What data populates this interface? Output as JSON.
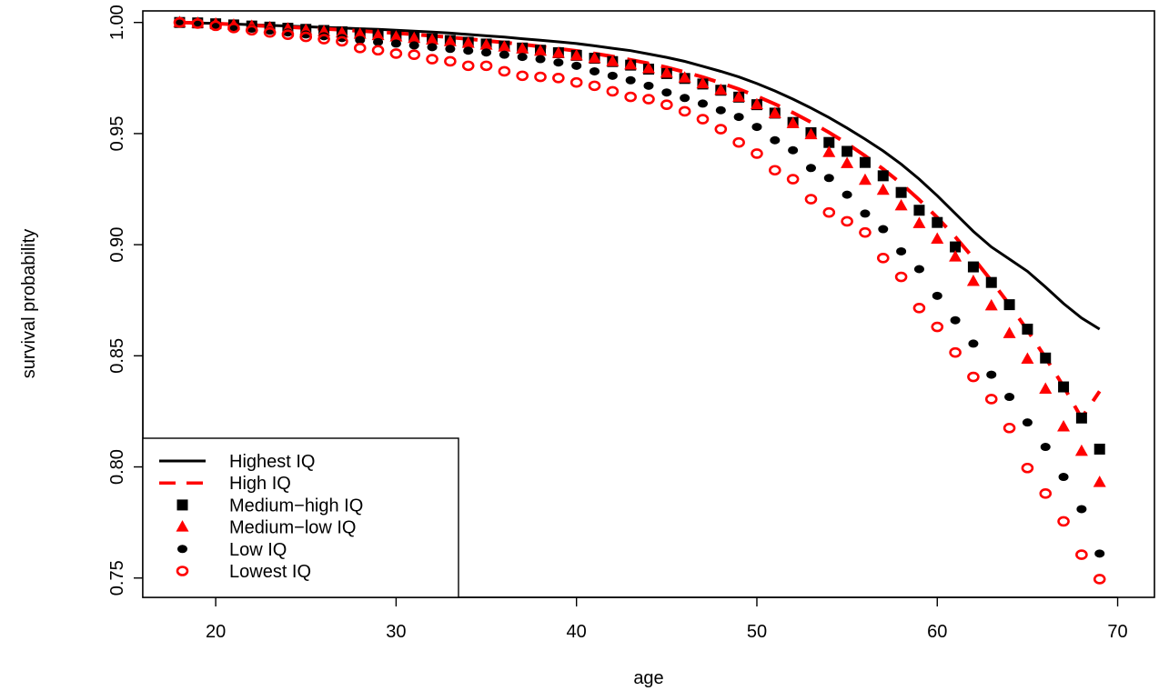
{
  "chart_data": {
    "type": "line",
    "title": "",
    "xlabel": "age",
    "ylabel": "survival probability",
    "xlim": [
      15.96,
      72.04
    ],
    "ylim": [
      0.7413,
      1.0052
    ],
    "x_ticks": [
      20,
      30,
      40,
      50,
      60,
      70
    ],
    "y_ticks": [
      0.75,
      0.8,
      0.85,
      0.9,
      0.95,
      1.0
    ],
    "x_tick_labels": [
      "20",
      "30",
      "40",
      "50",
      "60",
      "70"
    ],
    "y_tick_labels": [
      "0.75",
      "0.80",
      "0.85",
      "0.90",
      "0.95",
      "1.00"
    ],
    "grid": false,
    "legend_position": "bottom-left",
    "x": [
      18,
      19,
      20,
      21,
      22,
      23,
      24,
      25,
      26,
      27,
      28,
      29,
      30,
      31,
      32,
      33,
      34,
      35,
      36,
      37,
      38,
      39,
      40,
      41,
      42,
      43,
      44,
      45,
      46,
      47,
      48,
      49,
      50,
      51,
      52,
      53,
      54,
      55,
      56,
      57,
      58,
      59,
      60,
      61,
      62,
      63,
      64,
      65,
      66,
      67,
      68,
      69
    ],
    "series": [
      {
        "name": "Highest IQ",
        "style": "solid-line",
        "color": "#000000",
        "values": [
          1.0,
          0.9998,
          0.9996,
          0.9993,
          0.999,
          0.9987,
          0.9984,
          0.9981,
          0.9978,
          0.9975,
          0.9972,
          0.9969,
          0.9965,
          0.9961,
          0.9957,
          0.9952,
          0.9946,
          0.994,
          0.9934,
          0.9927,
          0.992,
          0.9913,
          0.9905,
          0.9895,
          0.9884,
          0.9873,
          0.9858,
          0.9843,
          0.9825,
          0.9803,
          0.978,
          0.9755,
          0.9725,
          0.9692,
          0.9655,
          0.9615,
          0.9572,
          0.9525,
          0.9475,
          0.9422,
          0.9362,
          0.9295,
          0.922,
          0.914,
          0.906,
          0.899,
          0.8935,
          0.888,
          0.881,
          0.8735,
          0.867,
          0.862
        ]
      },
      {
        "name": "High IQ",
        "style": "dashed-line",
        "color": "#ff0000",
        "values": [
          1.0,
          0.9998,
          0.9995,
          0.9991,
          0.9987,
          0.9983,
          0.9979,
          0.9975,
          0.9971,
          0.9967,
          0.9962,
          0.9957,
          0.9952,
          0.9946,
          0.994,
          0.9933,
          0.9926,
          0.9918,
          0.991,
          0.9901,
          0.9892,
          0.9882,
          0.9872,
          0.986,
          0.9847,
          0.9832,
          0.9816,
          0.9798,
          0.9777,
          0.9754,
          0.9728,
          0.97,
          0.9668,
          0.9633,
          0.9594,
          0.9551,
          0.9505,
          0.9455,
          0.94,
          0.934,
          0.9275,
          0.9202,
          0.9122,
          0.9035,
          0.894,
          0.8838,
          0.873,
          0.8615,
          0.8492,
          0.8362,
          0.822,
          0.834
        ]
      },
      {
        "name": "Medium−high IQ",
        "style": "square-marker",
        "color": "#000000",
        "values": [
          1.0,
          0.9998,
          0.9994,
          0.9989,
          0.9984,
          0.9979,
          0.9974,
          0.9969,
          0.9964,
          0.9958,
          0.9952,
          0.9946,
          0.994,
          0.9933,
          0.9926,
          0.9919,
          0.9911,
          0.9903,
          0.9894,
          0.9885,
          0.9875,
          0.9864,
          0.9852,
          0.9839,
          0.9824,
          0.9808,
          0.979,
          0.977,
          0.9748,
          0.9723,
          0.9695,
          0.9664,
          0.963,
          0.9592,
          0.955,
          0.9504,
          0.946,
          0.942,
          0.937,
          0.931,
          0.9235,
          0.9155,
          0.91,
          0.899,
          0.89,
          0.883,
          0.873,
          0.862,
          0.849,
          0.836,
          0.822,
          0.808
        ]
      },
      {
        "name": "Medium−low IQ",
        "style": "triangle-marker",
        "color": "#ff0000",
        "values": [
          1.0,
          0.9997,
          0.9993,
          0.9988,
          0.9983,
          0.9977,
          0.9971,
          0.9965,
          0.9959,
          0.9953,
          0.9947,
          0.9941,
          0.9935,
          0.9928,
          0.9921,
          0.9914,
          0.9906,
          0.9898,
          0.989,
          0.9881,
          0.9871,
          0.9861,
          0.985,
          0.9838,
          0.9824,
          0.9809,
          0.9792,
          0.9772,
          0.975,
          0.9724,
          0.9695,
          0.9664,
          0.963,
          0.959,
          0.9545,
          0.9495,
          0.9415,
          0.9365,
          0.929,
          0.9245,
          0.9175,
          0.9095,
          0.9025,
          0.8945,
          0.8835,
          0.8725,
          0.86,
          0.8485,
          0.835,
          0.818,
          0.807,
          0.793
        ]
      },
      {
        "name": "Low IQ",
        "style": "dot-marker",
        "color": "#000000",
        "values": [
          1.0,
          0.9995,
          0.9988,
          0.998,
          0.9972,
          0.9963,
          0.9955,
          0.9946,
          0.9938,
          0.993,
          0.9921,
          0.9912,
          0.9905,
          0.9897,
          0.9889,
          0.9881,
          0.9873,
          0.9865,
          0.9855,
          0.9845,
          0.9835,
          0.982,
          0.9805,
          0.978,
          0.976,
          0.974,
          0.9715,
          0.9685,
          0.966,
          0.9635,
          0.9605,
          0.9575,
          0.953,
          0.947,
          0.9425,
          0.9345,
          0.93,
          0.9225,
          0.914,
          0.907,
          0.897,
          0.889,
          0.877,
          0.866,
          0.8555,
          0.8415,
          0.8315,
          0.82,
          0.809,
          0.7955,
          0.781,
          0.761
        ]
      },
      {
        "name": "Lowest IQ",
        "style": "open-circle-marker",
        "color": "#ff0000",
        "values": [
          1.0,
          0.9995,
          0.9985,
          0.9975,
          0.9965,
          0.9955,
          0.9945,
          0.9935,
          0.9925,
          0.9915,
          0.9885,
          0.9875,
          0.986,
          0.9855,
          0.9835,
          0.9825,
          0.9805,
          0.9805,
          0.978,
          0.976,
          0.9755,
          0.975,
          0.973,
          0.9715,
          0.969,
          0.9665,
          0.9655,
          0.963,
          0.96,
          0.9565,
          0.952,
          0.946,
          0.941,
          0.9335,
          0.9295,
          0.9205,
          0.9145,
          0.9105,
          0.9055,
          0.894,
          0.8855,
          0.8715,
          0.863,
          0.8515,
          0.8405,
          0.8305,
          0.8175,
          0.7995,
          0.788,
          0.7755,
          0.7605,
          0.7495
        ]
      }
    ]
  }
}
